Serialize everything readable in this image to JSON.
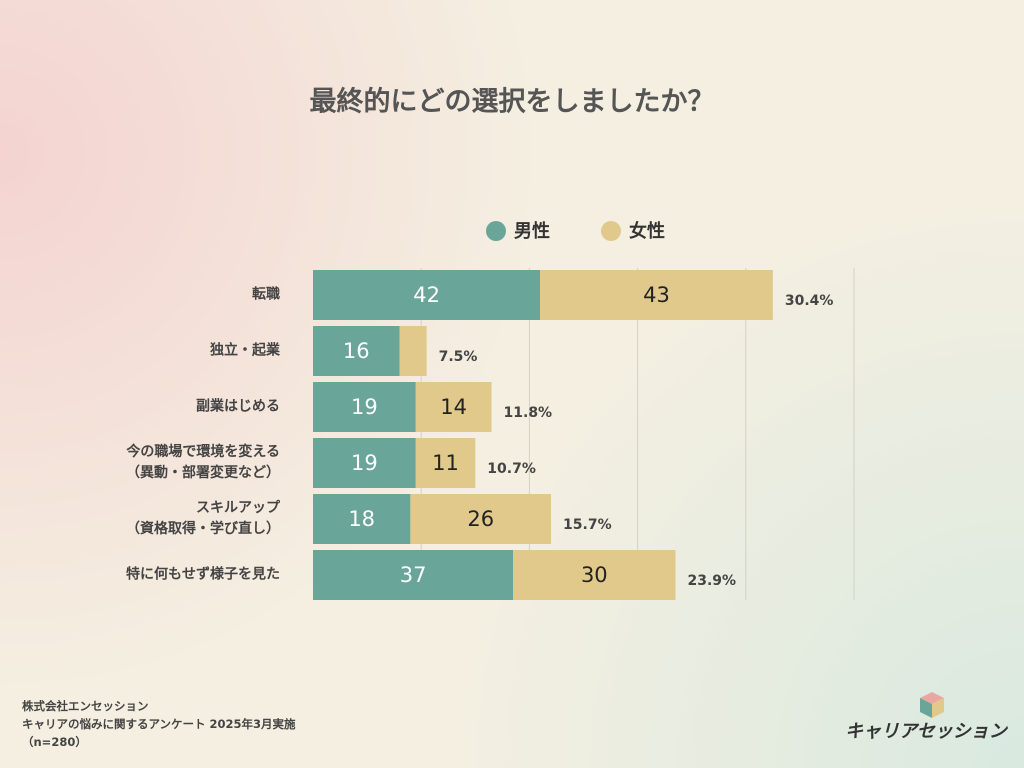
{
  "chart_data": {
    "type": "stacked-barh",
    "title": "最終的にどの選択をしましたか？",
    "categories": [
      "転職",
      "独立・起業",
      "副業はじめる",
      "今の職場で環境を変える\n（異動・部署変更など）",
      "スキルアップ\n（資格取得・学び直し）",
      "特に何もせず様子を見た"
    ],
    "series": [
      {
        "name": "男性",
        "color": "#6aa59a",
        "label_color": "#ffffff",
        "values": [
          42,
          16,
          19,
          19,
          18,
          37
        ]
      },
      {
        "name": "女性",
        "color": "#e0c98a",
        "label_color": "#222222",
        "values": [
          43,
          5,
          14,
          11,
          26,
          30
        ],
        "value_labels": [
          "43",
          null,
          "14",
          "11",
          "26",
          "30"
        ]
      }
    ],
    "share_labels": [
      "30.4%",
      "7.5%",
      "11.8%",
      "10.7%",
      "15.7%",
      "23.9%"
    ],
    "xlim": [
      0,
      100
    ],
    "xticks": [
      20,
      40,
      60,
      80,
      100
    ],
    "grid": true
  },
  "footer": {
    "lines": [
      "株式会社エンセッション",
      "キャリアの悩みに関するアンケート 2025年3月実施",
      "（n=280）"
    ]
  },
  "logo": {
    "text": "キャリアセッション"
  }
}
